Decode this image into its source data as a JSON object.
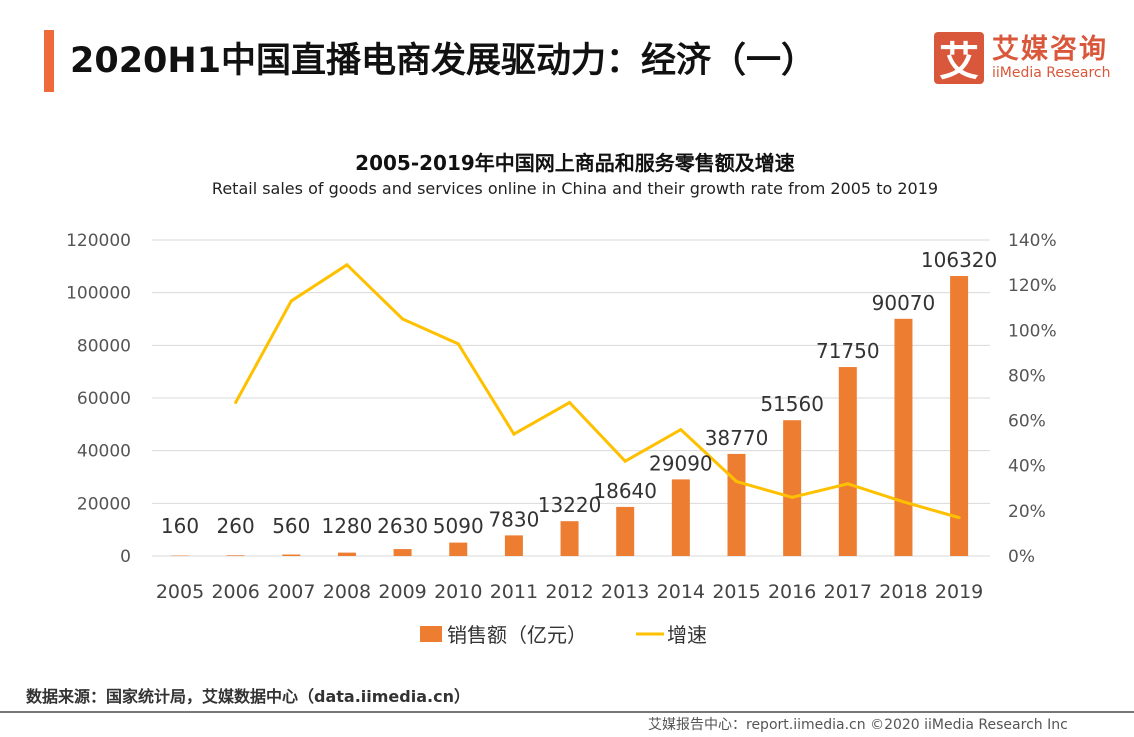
{
  "header": {
    "title": "2020H1中国直播电商发展驱动力：经济（一）"
  },
  "logo": {
    "mark": "艾",
    "cn": "艾媒咨询",
    "en": "iiMedia Research"
  },
  "chart_data": {
    "type": "bar+line",
    "title": "2005-2019年中国网上商品和服务零售额及增速",
    "subtitle": "Retail sales of goods and services online in China and their growth rate from 2005 to 2019",
    "categories": [
      "2005",
      "2006",
      "2007",
      "2008",
      "2009",
      "2010",
      "2011",
      "2012",
      "2013",
      "2014",
      "2015",
      "2016",
      "2017",
      "2018",
      "2019"
    ],
    "series": [
      {
        "name": "销售额（亿元）",
        "type": "bar",
        "axis": "left",
        "color": "#ed7d31",
        "values": [
          160,
          260,
          560,
          1280,
          2630,
          5090,
          7830,
          13220,
          18640,
          29090,
          38770,
          51560,
          71750,
          90070,
          106320
        ]
      },
      {
        "name": "增速",
        "type": "line",
        "axis": "right",
        "color": "#ffc000",
        "values": [
          null,
          68,
          113,
          129,
          105,
          94,
          54,
          68,
          42,
          56,
          33,
          26,
          32,
          24,
          17
        ]
      }
    ],
    "left_axis": {
      "ylim": [
        0,
        120000
      ],
      "ticks": [
        "0",
        "20000",
        "40000",
        "60000",
        "80000",
        "100000",
        "120000"
      ]
    },
    "right_axis": {
      "ylim": [
        0,
        140
      ],
      "ticks": [
        "0%",
        "20%",
        "40%",
        "60%",
        "80%",
        "100%",
        "120%",
        "140%"
      ]
    },
    "grid": true,
    "legend": "bottom"
  },
  "source": "数据来源：国家统计局，艾媒数据中心（data.iimedia.cn）",
  "footer": {
    "text": "艾媒报告中心：report.iimedia.cn   ©2020  iiMedia Research  Inc"
  }
}
